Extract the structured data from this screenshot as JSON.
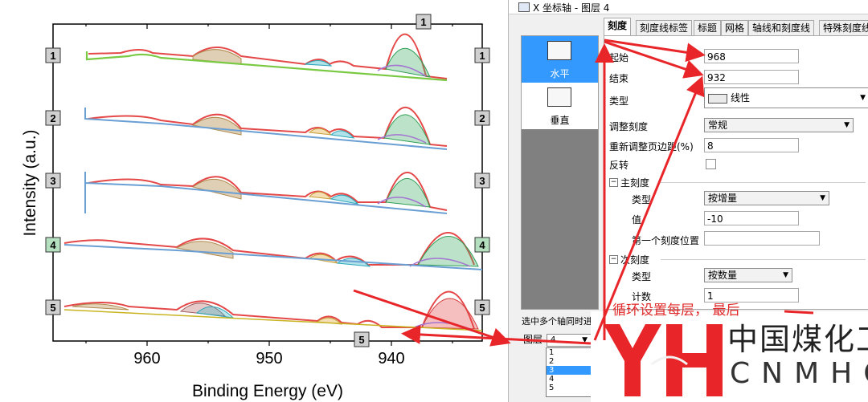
{
  "chart_data": {
    "type": "line",
    "xlabel": "Binding Energy (eV)",
    "ylabel": "Intensity (a.u.)",
    "xlim": [
      968,
      932
    ],
    "x_ticks": [
      "960",
      "950",
      "940"
    ],
    "series": [
      {
        "layer": "1"
      },
      {
        "layer": "2"
      },
      {
        "layer": "3"
      },
      {
        "layer": "4"
      },
      {
        "layer": "5"
      }
    ],
    "layer_tags": [
      "1",
      "2",
      "3",
      "4",
      "5"
    ],
    "layer_tag_colors": [
      "#d0d0d0",
      "#d0d0d0",
      "#d0d0d0",
      "#b5e0c0",
      "#d0d0d0"
    ],
    "grid": false
  },
  "dialog": {
    "title": "X 坐标轴 - 图层 4",
    "tabs": [
      "刻度",
      "刻度线标签",
      "标题",
      "网格",
      "轴线和刻度线",
      "特殊刻度线"
    ],
    "nav": {
      "horizontal": "水平",
      "vertical": "垂直"
    },
    "fields": {
      "from_label": "起始",
      "from_value": "968",
      "to_label": "结束",
      "to_value": "932",
      "type_label": "类型",
      "type_value": "线性",
      "rescale_label": "调整刻度",
      "rescale_value": "常规",
      "margin_label": "重新调整页边距(%)",
      "margin_value": "8",
      "reverse_label": "反转"
    },
    "major": {
      "header": "主刻度",
      "type_label": "类型",
      "type_value": "按增量",
      "value_label": "值",
      "value_value": "-10",
      "first_label": "第一个刻度位置",
      "first_value": ""
    },
    "minor": {
      "header": "次刻度",
      "type_label": "类型",
      "type_value": "按数量",
      "count_label": "计数",
      "count_value": "1"
    },
    "multi_axis_note": "选中多个轴同时进行修改",
    "layer_label": "图层",
    "layer_value": "4",
    "layer_options": [
      "1",
      "2",
      "3",
      "4",
      "5"
    ],
    "selected_highlight": "3"
  },
  "annotation": {
    "text": "循环设置每层， 最后",
    "color": "#e02a2a"
  },
  "logo": {
    "cn": "中国煤化工",
    "en": "CNMHG",
    "mark_color": "#e8262a"
  }
}
